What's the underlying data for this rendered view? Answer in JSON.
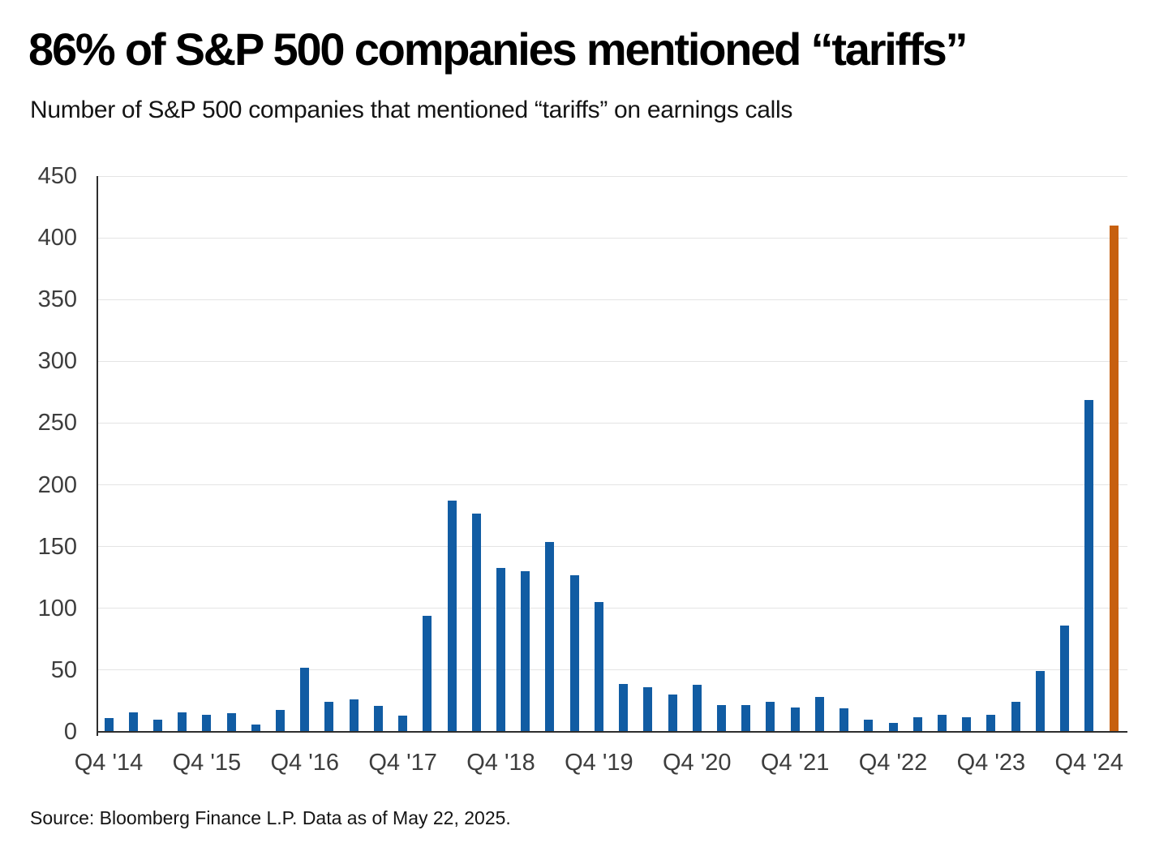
{
  "chart_data": {
    "type": "bar",
    "title": "86% of S&P 500 companies mentioned “tariffs”",
    "subtitle": "Number of S&P 500 companies that mentioned “tariffs” on earnings calls",
    "source": "Source: Bloomberg Finance L.P. Data as of May 22, 2025.",
    "categories": [
      "Q4 '14",
      "Q1 '15",
      "Q2 '15",
      "Q3 '15",
      "Q4 '15",
      "Q1 '16",
      "Q2 '16",
      "Q3 '16",
      "Q4 '16",
      "Q1 '17",
      "Q2 '17",
      "Q3 '17",
      "Q4 '17",
      "Q1 '18",
      "Q2 '18",
      "Q3 '18",
      "Q4 '18",
      "Q1 '19",
      "Q2 '19",
      "Q3 '19",
      "Q4 '19",
      "Q1 '20",
      "Q2 '20",
      "Q3 '20",
      "Q4 '20",
      "Q1 '21",
      "Q2 '21",
      "Q3 '21",
      "Q4 '21",
      "Q1 '22",
      "Q2 '22",
      "Q3 '22",
      "Q4 '22",
      "Q1 '23",
      "Q2 '23",
      "Q3 '23",
      "Q4 '23",
      "Q1 '24",
      "Q2 '24",
      "Q3 '24",
      "Q4 '24",
      "Q1 '25"
    ],
    "values": [
      11,
      16,
      10,
      16,
      14,
      15,
      6,
      18,
      52,
      24,
      26,
      21,
      13,
      94,
      187,
      177,
      133,
      130,
      154,
      127,
      105,
      39,
      36,
      30,
      38,
      22,
      22,
      24,
      20,
      28,
      19,
      10,
      7,
      12,
      14,
      12,
      14,
      24,
      49,
      86,
      269,
      410
    ],
    "highlight_index": 41,
    "x_tick_every": 4,
    "x_tick_labels_visible": [
      "Q4 '14",
      "Q4 '15",
      "Q4 '16",
      "Q4 '17",
      "Q4 '18",
      "Q4 '19",
      "Q4 '20",
      "Q4 '21",
      "Q4 '22",
      "Q4 '23",
      "Q4 '24"
    ],
    "y_ticks": [
      0,
      50,
      100,
      150,
      200,
      250,
      300,
      350,
      400,
      450
    ],
    "ylim": [
      0,
      450
    ],
    "xlabel": "",
    "ylabel": "",
    "grid": "horizontal",
    "legend": "none",
    "colors": {
      "bar": "#115CA3",
      "highlight": "#C7600F",
      "gridline": "#E4E4E4",
      "axis_line": "#2E2E2E",
      "tick_label": "#3D3D3D",
      "title": "#000000",
      "subtitle": "#141414"
    }
  }
}
